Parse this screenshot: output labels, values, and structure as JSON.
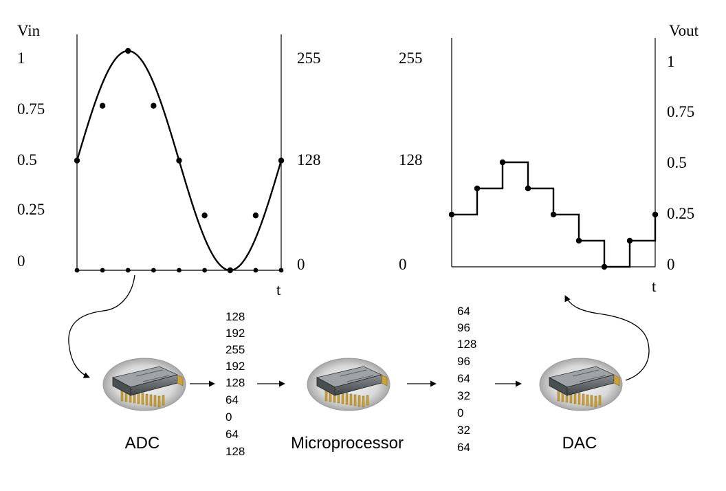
{
  "left_chart": {
    "left_axis_title": "Vin",
    "left_ticks": [
      "1",
      "0.75",
      "0.5",
      "0.25",
      "0"
    ],
    "right_ticks": [
      "255",
      "128",
      "0"
    ],
    "time_label": "t",
    "sample_voltages": [
      0.5,
      0.75,
      1,
      0.75,
      0.5,
      0.25,
      0,
      0.25,
      0.5
    ]
  },
  "right_chart": {
    "right_axis_title": "Vout",
    "left_ticks": [
      "255",
      "128",
      "0"
    ],
    "right_ticks": [
      "1",
      "0.75",
      "0.5",
      "0.25",
      "0"
    ],
    "time_label": "t",
    "output_codes": [
      64,
      96,
      128,
      96,
      64,
      32,
      0,
      32,
      64
    ]
  },
  "blocks": {
    "adc_label": "ADC",
    "micro_label": "Microprocessor",
    "dac_label": "DAC"
  },
  "adc_codes": [
    "128",
    "192",
    "255",
    "192",
    "128",
    "64",
    "0",
    "64",
    "128"
  ],
  "micro_codes": [
    "64",
    "96",
    "128",
    "96",
    "64",
    "32",
    "0",
    "32",
    "64"
  ]
}
